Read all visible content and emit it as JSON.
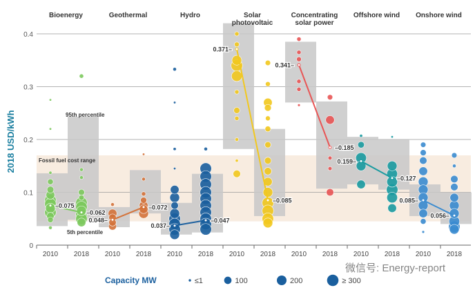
{
  "chart_data": {
    "type": "scatter",
    "ylabel": "2018 USD/kWh",
    "ylim": [
      0,
      0.4
    ],
    "yticks": [
      "0",
      "0.1",
      "0.2",
      "0.3",
      "0.4"
    ],
    "grid": true,
    "fossil_fuel_range": {
      "label": "Fossil fuel cost range",
      "low": 0.045,
      "high": 0.17
    },
    "percentile_labels": {
      "upper": "95th percentile",
      "lower": "5th percentile"
    },
    "years": [
      "2010",
      "2018"
    ],
    "technologies": [
      {
        "name": "Bioenergy",
        "color": "#7dc95e",
        "weighted_average": [
          0.075,
          0.062
        ],
        "percentile_band": [
          [
            0.036,
            0.136
          ],
          [
            0.048,
            0.243
          ]
        ],
        "projects": [
          [
            [
              0.22,
              1
            ],
            [
              0.275,
              1
            ],
            [
              0.137,
              5
            ],
            [
              0.12,
              50
            ],
            [
              0.105,
              80
            ],
            [
              0.095,
              150
            ],
            [
              0.085,
              300
            ],
            [
              0.078,
              300
            ],
            [
              0.07,
              200
            ],
            [
              0.062,
              300
            ],
            [
              0.055,
              100
            ],
            [
              0.048,
              50
            ],
            [
              0.033,
              10
            ]
          ],
          [
            [
              0.32,
              20
            ],
            [
              0.143,
              10
            ],
            [
              0.128,
              10
            ],
            [
              0.1,
              60
            ],
            [
              0.09,
              40
            ],
            [
              0.08,
              300
            ],
            [
              0.072,
              300
            ],
            [
              0.065,
              200
            ],
            [
              0.058,
              300
            ],
            [
              0.05,
              300
            ],
            [
              0.043,
              150
            ]
          ]
        ]
      },
      {
        "name": "Geothermal",
        "color": "#d4733a",
        "weighted_average": [
          0.048,
          0.072
        ],
        "percentile_band": [
          [
            0.034,
            0.072
          ],
          [
            0.06,
            0.142
          ]
        ],
        "projects": [
          [
            [
              0.077,
              10
            ],
            [
              0.06,
              150
            ],
            [
              0.052,
              100
            ],
            [
              0.043,
              100
            ],
            [
              0.036,
              120
            ]
          ],
          [
            [
              0.172,
              1
            ],
            [
              0.125,
              10
            ],
            [
              0.097,
              20
            ],
            [
              0.085,
              60
            ],
            [
              0.075,
              150
            ],
            [
              0.068,
              150
            ],
            [
              0.06,
              200
            ]
          ]
        ]
      },
      {
        "name": "Hydro",
        "color": "#1a5f9e",
        "weighted_average": [
          0.037,
          0.047
        ],
        "percentile_band": [
          [
            0.02,
            0.08
          ],
          [
            0.024,
            0.135
          ]
        ],
        "projects": [
          [
            [
              0.333,
              10
            ],
            [
              0.27,
              1
            ],
            [
              0.182,
              5
            ],
            [
              0.145,
              1
            ],
            [
              0.105,
              150
            ],
            [
              0.09,
              200
            ],
            [
              0.075,
              100
            ],
            [
              0.06,
              200
            ],
            [
              0.05,
              300
            ],
            [
              0.04,
              300
            ],
            [
              0.03,
              300
            ],
            [
              0.02,
              200
            ]
          ],
          [
            [
              0.182,
              10
            ],
            [
              0.145,
              300
            ],
            [
              0.13,
              300
            ],
            [
              0.115,
              300
            ],
            [
              0.1,
              300
            ],
            [
              0.088,
              300
            ],
            [
              0.075,
              300
            ],
            [
              0.062,
              300
            ],
            [
              0.05,
              300
            ],
            [
              0.04,
              300
            ],
            [
              0.03,
              300
            ]
          ]
        ]
      },
      {
        "name": "Solar photovoltaic",
        "label_lines": [
          "Solar",
          "photovoltaic"
        ],
        "color": "#f2c81e",
        "weighted_average": [
          0.371,
          0.085
        ],
        "percentile_band": [
          [
            0.182,
            0.42
          ],
          [
            0.055,
            0.22
          ]
        ],
        "projects": [
          [
            [
              0.4,
              20
            ],
            [
              0.38,
              30
            ],
            [
              0.35,
              200
            ],
            [
              0.34,
              300
            ],
            [
              0.32,
              250
            ],
            [
              0.29,
              20
            ],
            [
              0.255,
              60
            ],
            [
              0.24,
              20
            ],
            [
              0.2,
              10
            ],
            [
              0.16,
              5
            ],
            [
              0.135,
              100
            ]
          ],
          [
            [
              0.345,
              40
            ],
            [
              0.305,
              30
            ],
            [
              0.27,
              150
            ],
            [
              0.26,
              80
            ],
            [
              0.24,
              30
            ],
            [
              0.22,
              50
            ],
            [
              0.19,
              60
            ],
            [
              0.16,
              80
            ],
            [
              0.14,
              100
            ],
            [
              0.12,
              150
            ],
            [
              0.1,
              200
            ],
            [
              0.08,
              300
            ],
            [
              0.065,
              300
            ],
            [
              0.05,
              300
            ],
            [
              0.042,
              200
            ]
          ]
        ]
      },
      {
        "name": "Concentrating solar power",
        "label_lines": [
          "Concentrating",
          "solar power"
        ],
        "color": "#e85555",
        "weighted_average": [
          0.341,
          0.185
        ],
        "percentile_band": [
          [
            0.27,
            0.385
          ],
          [
            0.107,
            0.272
          ]
        ],
        "projects": [
          [
            [
              0.39,
              20
            ],
            [
              0.365,
              20
            ],
            [
              0.352,
              30
            ],
            [
              0.31,
              20
            ],
            [
              0.295,
              20
            ],
            [
              0.265,
              2
            ]
          ],
          [
            [
              0.28,
              40
            ],
            [
              0.237,
              150
            ],
            [
              0.185,
              10
            ],
            [
              0.165,
              15
            ],
            [
              0.145,
              15
            ],
            [
              0.1,
              100
            ]
          ]
        ]
      },
      {
        "name": "Offshore wind",
        "color": "#1a9ba0",
        "weighted_average": [
          0.159,
          0.127
        ],
        "percentile_band": [
          [
            0.115,
            0.205
          ],
          [
            0.105,
            0.2
          ]
        ],
        "projects": [
          [
            [
              0.207,
              5
            ],
            [
              0.19,
              70
            ],
            [
              0.165,
              250
            ],
            [
              0.15,
              200
            ],
            [
              0.115,
              150
            ]
          ],
          [
            [
              0.205,
              1
            ],
            [
              0.15,
              200
            ],
            [
              0.135,
              250
            ],
            [
              0.12,
              250
            ],
            [
              0.105,
              300
            ],
            [
              0.09,
              250
            ],
            [
              0.07,
              150
            ]
          ]
        ]
      },
      {
        "name": "Onshore wind",
        "color": "#3a8bd0",
        "weighted_average": [
          0.085,
          0.056
        ],
        "percentile_band": [
          [
            0.055,
            0.115
          ],
          [
            0.04,
            0.1
          ]
        ],
        "projects": [
          [
            [
              0.19,
              40
            ],
            [
              0.175,
              60
            ],
            [
              0.16,
              100
            ],
            [
              0.14,
              150
            ],
            [
              0.12,
              200
            ],
            [
              0.105,
              200
            ],
            [
              0.09,
              200
            ],
            [
              0.075,
              200
            ],
            [
              0.06,
              150
            ],
            [
              0.045,
              50
            ],
            [
              0.025,
              2
            ]
          ],
          [
            [
              0.17,
              40
            ],
            [
              0.15,
              10
            ],
            [
              0.125,
              100
            ],
            [
              0.11,
              100
            ],
            [
              0.09,
              150
            ],
            [
              0.075,
              200
            ],
            [
              0.06,
              200
            ],
            [
              0.045,
              250
            ],
            [
              0.035,
              300
            ],
            [
              0.03,
              200
            ]
          ]
        ]
      }
    ],
    "legend": {
      "title": "Capacity MW",
      "placement": "bottom",
      "entries": [
        {
          "label": "≤1",
          "mw": 1
        },
        {
          "label": "100",
          "mw": 100
        },
        {
          "label": "200",
          "mw": 200
        },
        {
          "label": "≥ 300",
          "mw": 300
        }
      ],
      "color": "#1a5f9e"
    }
  },
  "watermark": "微信号: Energy-report",
  "colors": {
    "axis_label": "#1b7fa0",
    "band": "#c8c8c8",
    "fossil": "#f8ece0"
  }
}
